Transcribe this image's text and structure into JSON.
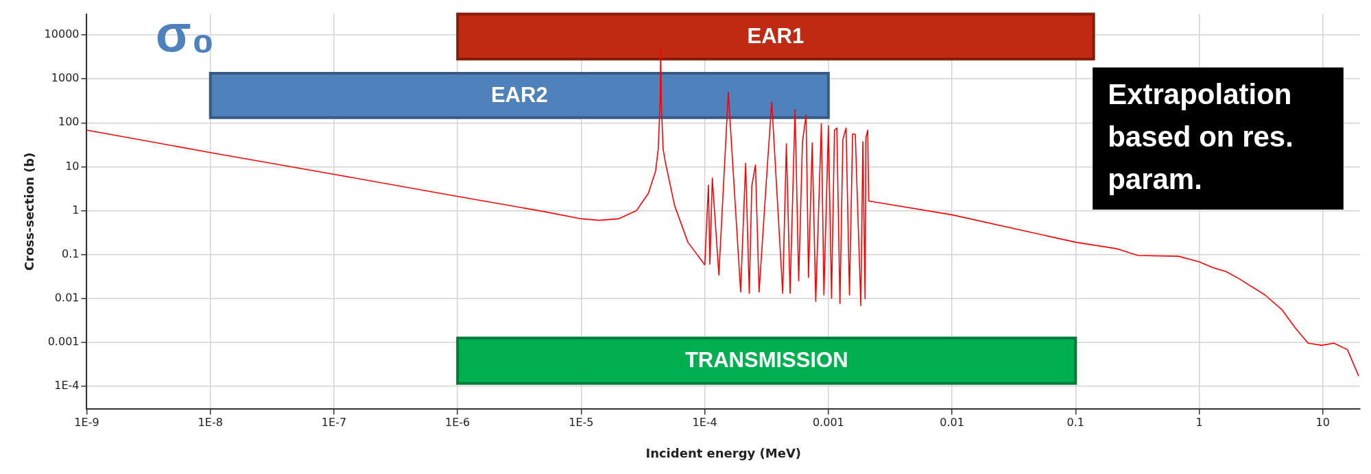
{
  "chart_data": {
    "type": "line",
    "xlabel": "Incident energy (MeV)",
    "ylabel": "Cross-section (b)",
    "x": [
      1e-09,
      1e-08,
      1e-07,
      1e-06,
      5e-06,
      1e-05,
      1.4e-05,
      2e-05,
      2.8e-05,
      3.5e-05,
      4e-05,
      4.2e-05,
      4.35e-05,
      4.4e-05,
      4.45e-05,
      4.6e-05,
      4.8e-05,
      5.7e-05,
      7.3e-05,
      0.0001,
      0.000107,
      0.00011,
      0.000115,
      0.00013,
      0.000155,
      0.000195,
      0.000214,
      0.000229,
      0.00024,
      0.000257,
      0.000275,
      0.000324,
      0.000348,
      0.000427,
      0.000457,
      0.00049,
      0.000537,
      0.000575,
      0.000617,
      0.00066,
      0.00069,
      0.00074,
      0.00079,
      0.000877,
      0.00092,
      0.001,
      0.00106,
      0.00112,
      0.00117,
      0.00124,
      0.00131,
      0.00139,
      0.00148,
      0.00157,
      0.00165,
      0.00183,
      0.0019,
      0.00198,
      0.00201,
      0.00208,
      0.00212,
      0.01,
      0.1,
      0.216,
      0.32,
      0.68,
      1,
      1.29,
      1.64,
      2.1,
      3.4,
      4.7,
      6,
      7.6,
      9.8,
      12.3,
      15.8,
      19.5
    ],
    "series": [
      {
        "color": "#ff0000",
        "values": [
          68,
          21,
          6.7,
          2.1,
          0.95,
          0.65,
          0.6,
          0.65,
          1,
          2.5,
          8,
          25,
          300,
          5000,
          300,
          25,
          12.6,
          1.3,
          0.19,
          0.058,
          3.8,
          0.06,
          5.5,
          0.034,
          500,
          0.014,
          12,
          0.013,
          3.6,
          11,
          0.014,
          16,
          300,
          0.013,
          33,
          0.013,
          200,
          0.025,
          37,
          150,
          0.03,
          35,
          0.0085,
          96,
          0.012,
          85,
          0.01,
          68,
          76,
          0.0076,
          42,
          76,
          0.012,
          56,
          55,
          0.0068,
          37,
          0.0098,
          45,
          68,
          1.65,
          0.8,
          0.19,
          0.135,
          0.095,
          0.091,
          0.068,
          0.05,
          0.041,
          0.028,
          0.012,
          0.0054,
          0.0021,
          0.00095,
          0.00085,
          0.00095,
          0.00068,
          0.00017
        ]
      }
    ],
    "xlim": [
      1e-09,
      20
    ],
    "ylim": [
      3e-05,
      30000
    ],
    "xticks": [
      {
        "value": 1e-09,
        "label": "1E-9"
      },
      {
        "value": 1e-08,
        "label": "1E-8"
      },
      {
        "value": 1e-07,
        "label": "1E-7"
      },
      {
        "value": 1e-06,
        "label": "1E-6"
      },
      {
        "value": 1e-05,
        "label": "1E-5"
      },
      {
        "value": 0.0001,
        "label": "1E-4"
      },
      0.001,
      0.01,
      0.1,
      1,
      10
    ],
    "yticks": [
      {
        "value": 0.0001,
        "label": "1E-4"
      },
      0.001,
      0.01,
      0.1,
      1,
      10,
      100,
      1000,
      10000
    ],
    "log": "xy",
    "grid": true,
    "legend": false,
    "marker": "none",
    "bands": [
      {
        "axis": "x",
        "from": 1e-06,
        "to": 0.14,
        "label": "EAR1",
        "color": "#bf2a10"
      },
      {
        "axis": "x",
        "from": 1e-08,
        "to": 0.001,
        "label": "EAR2",
        "color": "#4f81bd"
      },
      {
        "axis": "x",
        "from": 1e-06,
        "to": 0.1,
        "label": "TRANSMISSION",
        "color": "#00b050"
      }
    ],
    "annotations": [
      "σ₀",
      "Extrapolation based on res. param."
    ]
  }
}
